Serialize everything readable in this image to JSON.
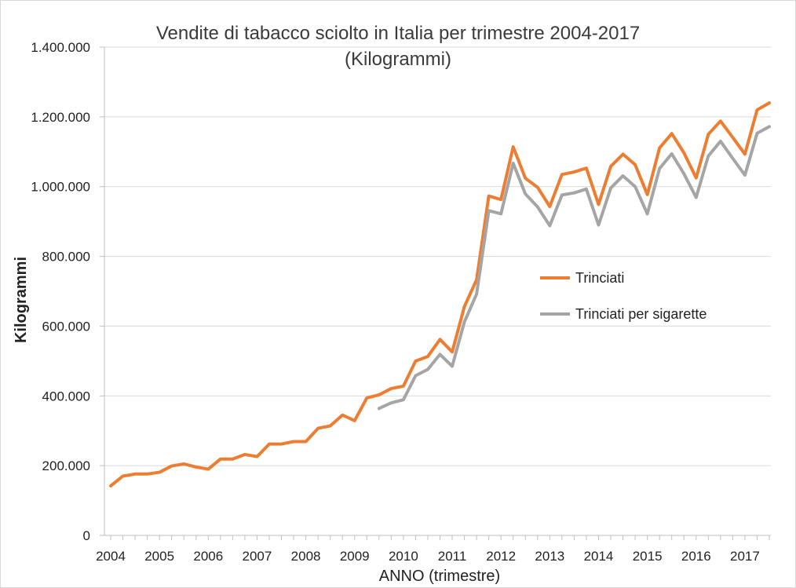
{
  "chart_data": {
    "type": "line",
    "title": "Vendite di tabacco sciolto in Italia per trimestre 2004-2017",
    "subtitle": "(Kilogrammi)",
    "xlabel": "ANNO (trimestre)",
    "ylabel": "Kilogrammi",
    "ylim": [
      0,
      1400000
    ],
    "y_ticks": [
      {
        "value": 0,
        "label": "0"
      },
      {
        "value": 200000,
        "label": "200.000"
      },
      {
        "value": 400000,
        "label": "400.000"
      },
      {
        "value": 600000,
        "label": "600.000"
      },
      {
        "value": 800000,
        "label": "800.000"
      },
      {
        "value": 1000000,
        "label": "1.000.000"
      },
      {
        "value": 1200000,
        "label": "1.200.000"
      },
      {
        "value": 1400000,
        "label": "1.400.000"
      }
    ],
    "x_tick_labels": [
      "2004",
      "2005",
      "2006",
      "2007",
      "2008",
      "2009",
      "2010",
      "2011",
      "2012",
      "2013",
      "2014",
      "2015",
      "2016",
      "2017"
    ],
    "grid": "horizontal",
    "legend_position": "right-middle",
    "series": [
      {
        "name": "Trinciati",
        "color": "#ed7d31",
        "values": [
          142000,
          170000,
          176000,
          176000,
          181000,
          199000,
          205000,
          196000,
          190000,
          219000,
          219000,
          232000,
          226000,
          262000,
          262000,
          269000,
          269000,
          307000,
          314000,
          345000,
          329000,
          394000,
          403000,
          421000,
          428000,
          500000,
          513000,
          562000,
          526000,
          656000,
          733000,
          973000,
          963000,
          1114000,
          1024000,
          998000,
          943000,
          1035000,
          1042000,
          1053000,
          949000,
          1058000,
          1093000,
          1063000,
          977000,
          1111000,
          1152000,
          1097000,
          1025000,
          1150000,
          1188000,
          1141000,
          1093000,
          1220000,
          1240000
        ]
      },
      {
        "name": "Trinciati per sigarette",
        "color": "#a5a5a5",
        "values": [
          null,
          null,
          null,
          null,
          null,
          null,
          null,
          null,
          null,
          null,
          null,
          null,
          null,
          null,
          null,
          null,
          null,
          null,
          null,
          null,
          null,
          null,
          364000,
          380000,
          389000,
          458000,
          476000,
          519000,
          485000,
          612000,
          692000,
          931000,
          922000,
          1067000,
          979000,
          942000,
          888000,
          976000,
          982000,
          993000,
          890000,
          996000,
          1031000,
          1000000,
          922000,
          1052000,
          1094000,
          1037000,
          969000,
          1088000,
          1130000,
          1081000,
          1033000,
          1153000,
          1172000
        ]
      }
    ]
  }
}
